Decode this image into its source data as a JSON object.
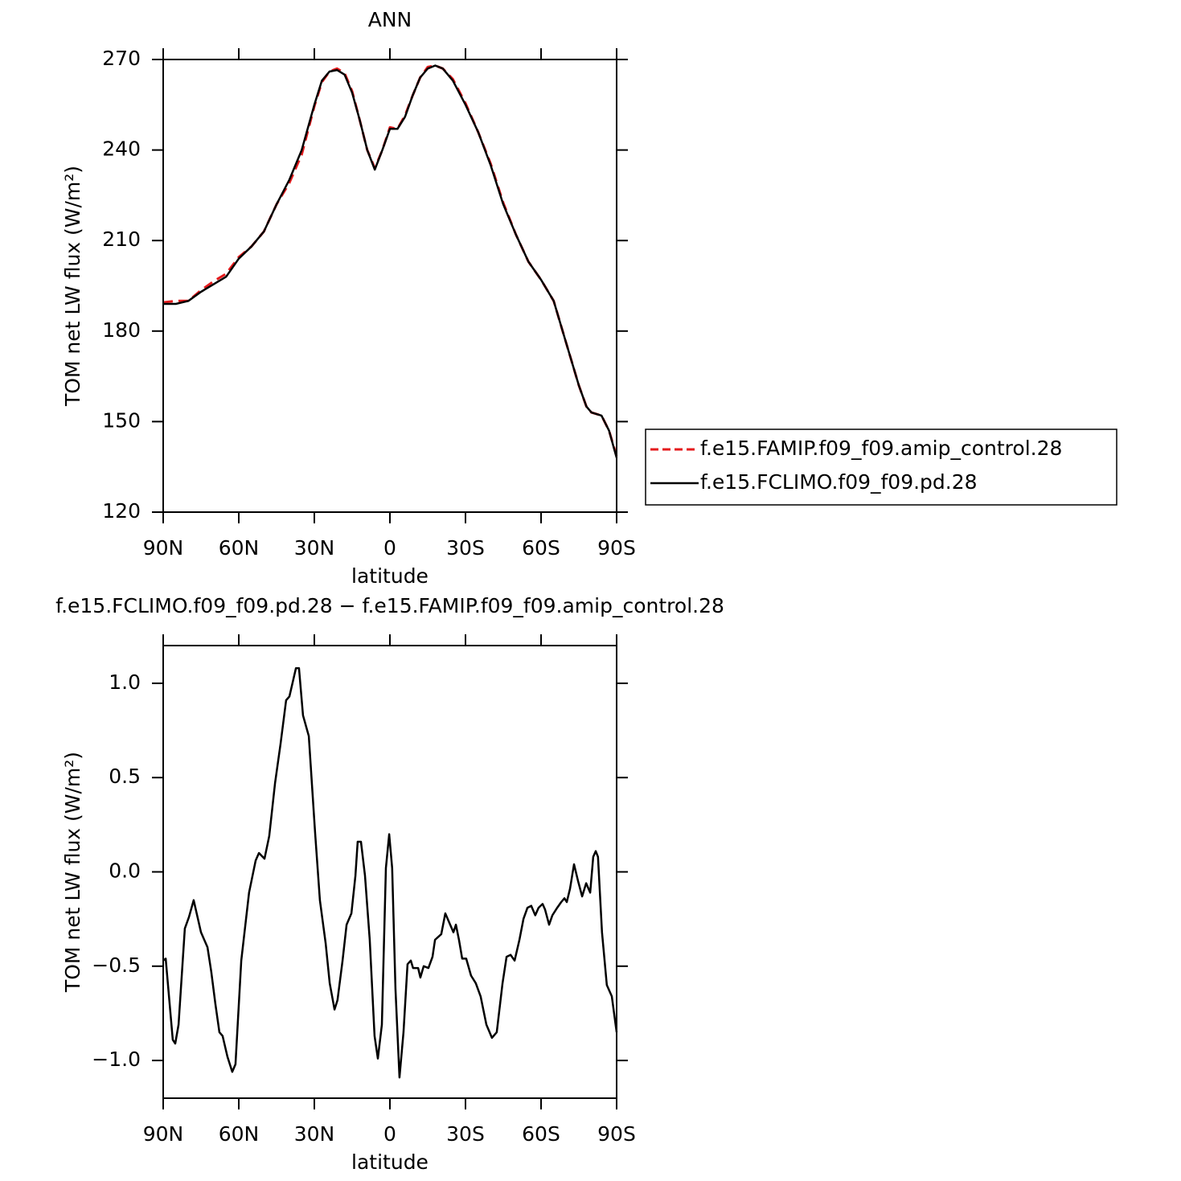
{
  "chart_data": [
    {
      "type": "line",
      "title": "ANN",
      "xlabel": "latitude",
      "ylabel": "TOM net LW flux (W/m²)",
      "x": [
        90,
        85,
        80,
        75,
        70,
        65,
        60,
        55,
        50,
        45,
        40,
        35,
        30,
        27,
        24,
        21,
        18,
        15,
        12,
        9,
        6,
        3,
        0,
        -3,
        -6,
        -9,
        -12,
        -15,
        -18,
        -21,
        -25,
        -30,
        -35,
        -40,
        -45,
        -50,
        -55,
        -60,
        -65,
        -70,
        -75,
        -78,
        -80,
        -84,
        -87,
        -90
      ],
      "series": [
        {
          "name": "f.e15.FAMIP.f09_f09.amip_control.28",
          "color": "#e41a1c",
          "dashed": true,
          "values": [
            189.5,
            190,
            190,
            193.5,
            196.5,
            199,
            204.5,
            208,
            213,
            222,
            229,
            238.5,
            254.5,
            262.5,
            266,
            267,
            265.5,
            259.5,
            250,
            240,
            234,
            240,
            247.5,
            247,
            251.5,
            258,
            264,
            267.5,
            268,
            267,
            263.5,
            255.5,
            246,
            235.5,
            222.5,
            212,
            203,
            197,
            190,
            176,
            162,
            155,
            153,
            152,
            147,
            138.5
          ]
        },
        {
          "name": "f.e15.FCLIMO.f09_f09.pd.28",
          "color": "#000000",
          "dashed": false,
          "values": [
            189,
            189,
            190,
            193,
            195.5,
            198,
            204,
            208,
            213,
            222,
            230,
            240,
            255,
            263,
            266,
            266.5,
            265,
            259,
            250,
            240,
            233.5,
            240,
            247,
            247,
            251,
            258,
            264,
            267,
            268,
            267,
            263,
            255,
            246,
            235,
            222,
            212,
            203,
            197,
            190,
            176,
            162,
            155,
            153,
            152,
            147,
            138
          ]
        }
      ],
      "xlim": [
        90,
        -90
      ],
      "xticks": [
        {
          "value": 90,
          "label": "90N"
        },
        {
          "value": 60,
          "label": "60N"
        },
        {
          "value": 30,
          "label": "30N"
        },
        0,
        {
          "value": -30,
          "label": "30S"
        },
        {
          "value": -60,
          "label": "60S"
        },
        {
          "value": -90,
          "label": "90S"
        }
      ],
      "ylim": [
        120,
        270
      ],
      "yticks": [
        120,
        150,
        180,
        210,
        240,
        270
      ],
      "legend": "right"
    },
    {
      "type": "line",
      "title": "f.e15.FCLIMO.f09_f09.pd.28 − f.e15.FAMIP.f09_f09.amip_control.28",
      "xlabel": "latitude",
      "ylabel": "TOM net LW flux (W/m²)",
      "x": [
        90,
        89,
        86.2,
        85.2,
        83.9,
        81.4,
        79.8,
        77.9,
        75,
        72.4,
        70.9,
        69.3,
        67.7,
        66.4,
        64.5,
        62.6,
        61.3,
        59,
        55.9,
        53.3,
        52,
        49.8,
        47.9,
        45.6,
        43.4,
        41.2,
        39.9,
        37.3,
        36.1,
        34.5,
        32.2,
        29.7,
        27.8,
        25.5,
        23.9,
        22,
        20.8,
        18.8,
        17.2,
        15.3,
        13.7,
        12.8,
        11.5,
        9.9,
        8,
        6.1,
        4.8,
        3.2,
        1.6,
        0.3,
        -0.9,
        -2.2,
        -3.8,
        -5.4,
        -7,
        -8.3,
        -9.2,
        -11.2,
        -12.1,
        -13.4,
        -15.3,
        -16.9,
        -17.9,
        -20.4,
        -22,
        -23.6,
        -25.2,
        -26.2,
        -27.4,
        -28.7,
        -30.3,
        -32.2,
        -34.1,
        -36,
        -38.3,
        -40.5,
        -42.4,
        -44.7,
        -46.3,
        -47.9,
        -49.5,
        -51.4,
        -53,
        -54.6,
        -56.1,
        -57.7,
        -59,
        -60.6,
        -61.6,
        -63.2,
        -64.5,
        -66.4,
        -68,
        -69.3,
        -70.2,
        -71.5,
        -73.1,
        -74.7,
        -76.3,
        -77.9,
        -79.5,
        -80.7,
        -81.7,
        -82.6,
        -84.2,
        -86.1,
        -88.1,
        -90
      ],
      "series": [
        {
          "color": "#000000",
          "dashed": false,
          "values": [
            -0.47,
            -0.46,
            -0.89,
            -0.91,
            -0.81,
            -0.3,
            -0.24,
            -0.15,
            -0.32,
            -0.4,
            -0.53,
            -0.7,
            -0.85,
            -0.87,
            -0.98,
            -1.06,
            -1.02,
            -0.47,
            -0.11,
            0.06,
            0.1,
            0.07,
            0.19,
            0.47,
            0.68,
            0.91,
            0.93,
            1.08,
            1.08,
            0.83,
            0.72,
            0.21,
            -0.15,
            -0.38,
            -0.59,
            -0.73,
            -0.68,
            -0.47,
            -0.28,
            -0.22,
            -0.02,
            0.16,
            0.16,
            -0.02,
            -0.36,
            -0.87,
            -0.99,
            -0.81,
            0.02,
            0.2,
            0.02,
            -0.62,
            -1.09,
            -0.85,
            -0.49,
            -0.47,
            -0.51,
            -0.51,
            -0.56,
            -0.5,
            -0.51,
            -0.45,
            -0.36,
            -0.33,
            -0.22,
            -0.27,
            -0.32,
            -0.28,
            -0.36,
            -0.46,
            -0.46,
            -0.55,
            -0.59,
            -0.66,
            -0.81,
            -0.88,
            -0.85,
            -0.59,
            -0.45,
            -0.44,
            -0.47,
            -0.36,
            -0.25,
            -0.19,
            -0.18,
            -0.23,
            -0.19,
            -0.17,
            -0.2,
            -0.28,
            -0.23,
            -0.19,
            -0.16,
            -0.14,
            -0.16,
            -0.09,
            0.04,
            -0.05,
            -0.13,
            -0.06,
            -0.11,
            0.08,
            0.11,
            0.08,
            -0.32,
            -0.6,
            -0.66,
            -0.85
          ]
        }
      ],
      "xlim": [
        90,
        -90
      ],
      "xticks": [
        {
          "value": 90,
          "label": "90N"
        },
        {
          "value": 60,
          "label": "60N"
        },
        {
          "value": 30,
          "label": "30N"
        },
        0,
        {
          "value": -30,
          "label": "30S"
        },
        {
          "value": -60,
          "label": "60S"
        },
        {
          "value": -90,
          "label": "90S"
        }
      ],
      "ylim": [
        -1.2,
        1.2
      ],
      "yticks": [
        {
          "value": -1,
          "label": "−1.0"
        },
        {
          "value": -0.5,
          "label": "−0.5"
        },
        {
          "value": 0,
          "label": "0.0"
        },
        {
          "value": 0.5,
          "label": "0.5"
        },
        {
          "value": 1,
          "label": "1.0"
        }
      ]
    }
  ]
}
